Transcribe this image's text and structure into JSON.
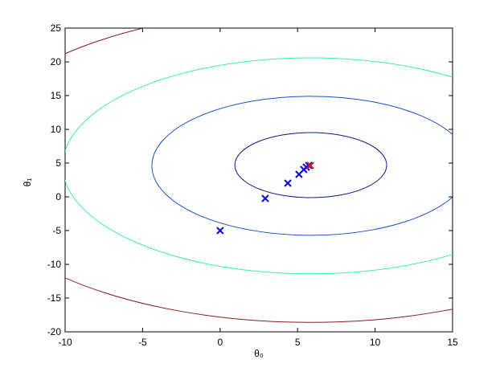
{
  "chart_data": {
    "type": "contour",
    "xlabel": "θ₀",
    "ylabel": "θ₁",
    "xlim": [
      -10,
      15
    ],
    "ylim": [
      -20,
      25
    ],
    "xticks": [
      -10,
      -5,
      0,
      5,
      10,
      15
    ],
    "yticks": [
      -20,
      -15,
      -10,
      -5,
      0,
      5,
      10,
      15,
      20,
      25
    ],
    "grid": false,
    "contours": [
      {
        "cx": 5.85,
        "cy": 4.6,
        "rx": 22.7,
        "ry": 23.2,
        "color": "#8b1a1a"
      },
      {
        "cx": 5.85,
        "cy": 4.6,
        "rx": 16.0,
        "ry": 16.0,
        "color": "#3ef0a0"
      },
      {
        "cx": 5.85,
        "cy": 4.6,
        "rx": 10.25,
        "ry": 10.3,
        "color": "#1a4fd0"
      },
      {
        "cx": 5.85,
        "cy": 4.7,
        "rx": 4.9,
        "ry": 4.82,
        "color": "#0a1a8c"
      }
    ],
    "points": {
      "x": [
        0,
        2.91,
        4.37,
        5.09,
        5.4,
        5.56,
        5.72
      ],
      "y": [
        -5,
        -0.24,
        2.02,
        3.33,
        4.05,
        4.4,
        4.64
      ],
      "color": "#1010d8"
    },
    "final_point": {
      "x": 5.82,
      "y": 4.64,
      "color": "#e01010"
    }
  }
}
